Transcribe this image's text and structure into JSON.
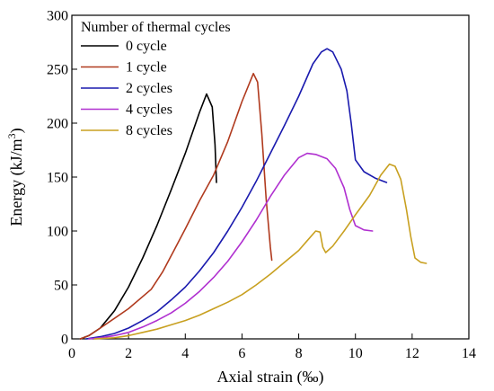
{
  "chart_data": {
    "type": "line",
    "title": "",
    "xlabel": "Axial strain (‰)",
    "ylabel_main": "Energy (kJ/m",
    "ylabel_sup": "3",
    "ylabel_close": ")",
    "xlim": [
      0,
      14
    ],
    "ylim": [
      0,
      300
    ],
    "xticks": [
      "0",
      "2",
      "4",
      "6",
      "8",
      "10",
      "12",
      "14"
    ],
    "yticks": [
      "0",
      "50",
      "100",
      "150",
      "200",
      "250",
      "300"
    ],
    "grid": false,
    "legend": {
      "title": "Number of thermal cycles",
      "position": "top-left"
    },
    "series": [
      {
        "name": "0 cycle",
        "color": "#000000",
        "points": [
          [
            0.3,
            0
          ],
          [
            0.6,
            3
          ],
          [
            1.0,
            10
          ],
          [
            1.5,
            26
          ],
          [
            2.0,
            48
          ],
          [
            2.5,
            75
          ],
          [
            3.0,
            105
          ],
          [
            3.5,
            138
          ],
          [
            4.0,
            172
          ],
          [
            4.5,
            210
          ],
          [
            4.75,
            227
          ],
          [
            4.95,
            215
          ],
          [
            5.05,
            180
          ],
          [
            5.1,
            145
          ]
        ]
      },
      {
        "name": "1 cycle",
        "color": "#b03a1e",
        "points": [
          [
            0.3,
            0
          ],
          [
            0.6,
            3
          ],
          [
            1.0,
            10
          ],
          [
            1.5,
            19
          ],
          [
            2.0,
            28
          ],
          [
            2.8,
            46
          ],
          [
            3.2,
            62
          ],
          [
            3.6,
            82
          ],
          [
            4.0,
            102
          ],
          [
            4.5,
            128
          ],
          [
            5.0,
            152
          ],
          [
            5.5,
            183
          ],
          [
            6.0,
            220
          ],
          [
            6.4,
            246
          ],
          [
            6.55,
            238
          ],
          [
            6.7,
            190
          ],
          [
            6.85,
            130
          ],
          [
            7.0,
            85
          ],
          [
            7.05,
            73
          ]
        ]
      },
      {
        "name": "2 cycles",
        "color": "#1a1aae",
        "points": [
          [
            0.5,
            0
          ],
          [
            1.0,
            2
          ],
          [
            1.5,
            5
          ],
          [
            2.0,
            10
          ],
          [
            2.5,
            17
          ],
          [
            3.0,
            25
          ],
          [
            3.5,
            36
          ],
          [
            4.0,
            48
          ],
          [
            4.5,
            63
          ],
          [
            5.0,
            80
          ],
          [
            5.5,
            100
          ],
          [
            6.0,
            122
          ],
          [
            6.5,
            146
          ],
          [
            7.0,
            172
          ],
          [
            7.5,
            198
          ],
          [
            8.0,
            225
          ],
          [
            8.5,
            255
          ],
          [
            8.8,
            266
          ],
          [
            9.0,
            269
          ],
          [
            9.2,
            266
          ],
          [
            9.5,
            250
          ],
          [
            9.7,
            230
          ],
          [
            9.85,
            200
          ],
          [
            10.0,
            166
          ],
          [
            10.3,
            155
          ],
          [
            10.7,
            149
          ],
          [
            11.1,
            145
          ]
        ]
      },
      {
        "name": "4 cycles",
        "color": "#b030d0",
        "points": [
          [
            0.6,
            0
          ],
          [
            1.0,
            1
          ],
          [
            1.5,
            3
          ],
          [
            2.0,
            6
          ],
          [
            2.5,
            11
          ],
          [
            3.0,
            17
          ],
          [
            3.5,
            24
          ],
          [
            4.0,
            33
          ],
          [
            4.5,
            44
          ],
          [
            5.0,
            57
          ],
          [
            5.5,
            72
          ],
          [
            6.0,
            90
          ],
          [
            6.5,
            110
          ],
          [
            7.0,
            132
          ],
          [
            7.5,
            152
          ],
          [
            8.0,
            168
          ],
          [
            8.3,
            172
          ],
          [
            8.6,
            171
          ],
          [
            9.0,
            167
          ],
          [
            9.3,
            158
          ],
          [
            9.6,
            140
          ],
          [
            9.8,
            120
          ],
          [
            10.0,
            105
          ],
          [
            10.3,
            101
          ],
          [
            10.6,
            100
          ]
        ]
      },
      {
        "name": "8 cycles",
        "color": "#c8a020",
        "points": [
          [
            0.8,
            0
          ],
          [
            1.5,
            1
          ],
          [
            2.0,
            3
          ],
          [
            2.5,
            6
          ],
          [
            3.0,
            9
          ],
          [
            3.5,
            13
          ],
          [
            4.0,
            17
          ],
          [
            4.5,
            22
          ],
          [
            5.0,
            28
          ],
          [
            5.5,
            34
          ],
          [
            6.0,
            41
          ],
          [
            6.5,
            50
          ],
          [
            7.0,
            60
          ],
          [
            7.5,
            71
          ],
          [
            8.0,
            82
          ],
          [
            8.3,
            91
          ],
          [
            8.6,
            100
          ],
          [
            8.75,
            99
          ],
          [
            8.85,
            85
          ],
          [
            8.95,
            80
          ],
          [
            9.2,
            86
          ],
          [
            9.6,
            100
          ],
          [
            10.0,
            115
          ],
          [
            10.5,
            133
          ],
          [
            10.9,
            152
          ],
          [
            11.2,
            162
          ],
          [
            11.4,
            160
          ],
          [
            11.6,
            148
          ],
          [
            11.8,
            120
          ],
          [
            11.95,
            95
          ],
          [
            12.1,
            75
          ],
          [
            12.3,
            71
          ],
          [
            12.5,
            70
          ]
        ]
      }
    ]
  }
}
